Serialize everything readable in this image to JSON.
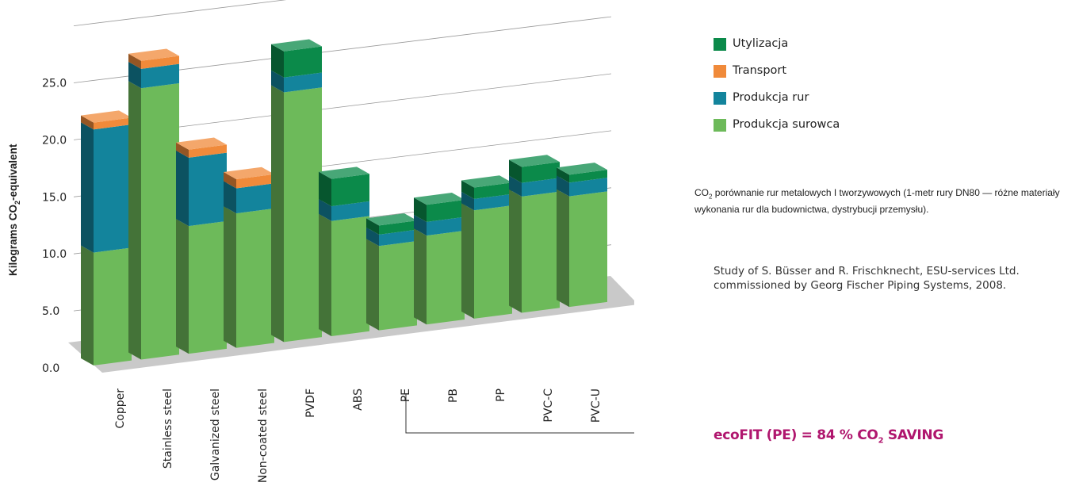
{
  "chart_data": {
    "type": "bar",
    "subtype": "stacked-3d",
    "ylabel_prefix": "Kilograms CO",
    "ylabel_sub": "2",
    "ylabel_suffix": "-equivalent",
    "yticks": [
      "0.0",
      "5.0",
      "10.0",
      "15.0",
      "20.0",
      "25.0"
    ],
    "ylim": [
      0,
      25
    ],
    "grid": true,
    "categories": [
      "Copper",
      "Stainless steel",
      "Galvanized steel",
      "Non-coated steel",
      "PVDF",
      "ABS",
      "PE",
      "PB",
      "PP",
      "PVC-C",
      "PVC-U"
    ],
    "series": [
      {
        "name": "Produkcja surowca",
        "color": "#6dba5a",
        "values": [
          9.9,
          23.8,
          11.2,
          11.8,
          21.9,
          10.1,
          7.4,
          7.8,
          9.5,
          10.2,
          9.7
        ]
      },
      {
        "name": "Produkcja rur",
        "color": "#13849c",
        "values": [
          10.8,
          1.7,
          6.0,
          2.2,
          1.3,
          1.3,
          1.0,
          1.2,
          1.0,
          1.2,
          1.2
        ]
      },
      {
        "name": "Transport",
        "color": "#f08a3a",
        "values": [
          0.6,
          0.7,
          0.7,
          0.8,
          0.0,
          0.0,
          0.0,
          0.0,
          0.0,
          0.0,
          0.0
        ]
      },
      {
        "name": "Utylizacja",
        "color": "#0b8a4a",
        "values": [
          0.0,
          0.0,
          0.0,
          0.0,
          2.3,
          2.4,
          0.8,
          1.5,
          1.0,
          1.4,
          0.7
        ]
      }
    ],
    "legend_position": "right"
  },
  "legend": {
    "items": [
      {
        "label": "Utylizacja",
        "color": "#0b8a4a"
      },
      {
        "label": "Transport",
        "color": "#f08a3a"
      },
      {
        "label": "Produkcja rur",
        "color": "#13849c"
      },
      {
        "label": "Produkcja surowca",
        "color": "#6dba5a"
      }
    ]
  },
  "caption": {
    "co": "CO",
    "sub": "2",
    "text": " porównanie rur metalowych I tworzywowych (1-metr rury DN80 — różne materiały wykonania rur dla budownictwa, dystrybucji przemysłu)."
  },
  "study": "Study of S. Büsser and R. Frischknecht, ESU-services Ltd. commissioned by Georg Fischer Piping Systems, 2008.",
  "callout": {
    "prefix": "ecoFIT (PE) = 84 % CO",
    "sub": "2",
    "suffix": " SAVING",
    "color": "#b0166e",
    "target_category": "PE"
  }
}
